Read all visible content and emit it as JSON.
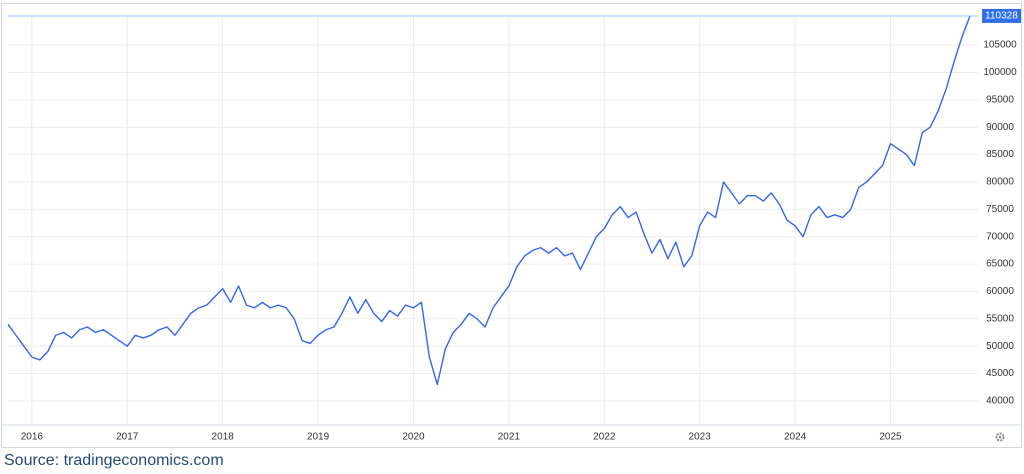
{
  "chart_data": {
    "type": "line",
    "categories": [
      null,
      null,
      null,
      "2016",
      null,
      null,
      null,
      null,
      null,
      null,
      null,
      null,
      null,
      null,
      null,
      "2017",
      null,
      null,
      null,
      null,
      null,
      null,
      null,
      null,
      null,
      null,
      null,
      "2018",
      null,
      null,
      null,
      null,
      null,
      null,
      null,
      null,
      null,
      null,
      null,
      "2019",
      null,
      null,
      null,
      null,
      null,
      null,
      null,
      null,
      null,
      null,
      null,
      "2020",
      null,
      null,
      null,
      null,
      null,
      null,
      null,
      null,
      null,
      null,
      null,
      "2021",
      null,
      null,
      null,
      null,
      null,
      null,
      null,
      null,
      null,
      null,
      null,
      "2022",
      null,
      null,
      null,
      null,
      null,
      null,
      null,
      null,
      null,
      null,
      null,
      "2023",
      null,
      null,
      null,
      null,
      null,
      null,
      null,
      null,
      null,
      null,
      null,
      "2024",
      null,
      null,
      null,
      null,
      null,
      null,
      null,
      null,
      null,
      null,
      null,
      "2025",
      null,
      null,
      null,
      null,
      null,
      null,
      null,
      null,
      null,
      null
    ],
    "values": [
      54000,
      52000,
      50000,
      48000,
      47500,
      49000,
      52000,
      52500,
      51500,
      53000,
      53500,
      52500,
      53000,
      52000,
      51000,
      50000,
      52000,
      51500,
      52000,
      53000,
      53500,
      52000,
      54000,
      56000,
      57000,
      57500,
      59000,
      60500,
      58000,
      61000,
      57500,
      57000,
      58000,
      57000,
      57500,
      57000,
      55000,
      51000,
      50500,
      52000,
      53000,
      53500,
      56000,
      59000,
      56000,
      58500,
      56000,
      54500,
      56500,
      55500,
      57500,
      57000,
      58000,
      48000,
      43000,
      49500,
      52500,
      54000,
      56000,
      55000,
      53500,
      57000,
      59000,
      61000,
      64500,
      66500,
      67500,
      68000,
      67000,
      68000,
      66500,
      67000,
      64000,
      67000,
      70000,
      71500,
      74000,
      75500,
      73500,
      74500,
      70500,
      67000,
      69500,
      66000,
      69000,
      64500,
      66500,
      72000,
      74500,
      73500,
      80000,
      78000,
      76000,
      77500,
      77500,
      76500,
      78000,
      76000,
      73000,
      72000,
      70000,
      74000,
      75500,
      73500,
      74000,
      73500,
      75000,
      79000,
      80000,
      81500,
      83000,
      87000,
      86000,
      85000,
      83000,
      89000,
      90000,
      93000,
      97000,
      102000,
      106500,
      110328
    ],
    "color": "#3366ee",
    "ylim": [
      35600,
      110500
    ],
    "yticks": [
      40000,
      45000,
      50000,
      55000,
      60000,
      65000,
      70000,
      75000,
      80000,
      85000,
      90000,
      95000,
      100000,
      105000
    ],
    "grid": true,
    "source": "Source: tradingeconomics.com"
  }
}
